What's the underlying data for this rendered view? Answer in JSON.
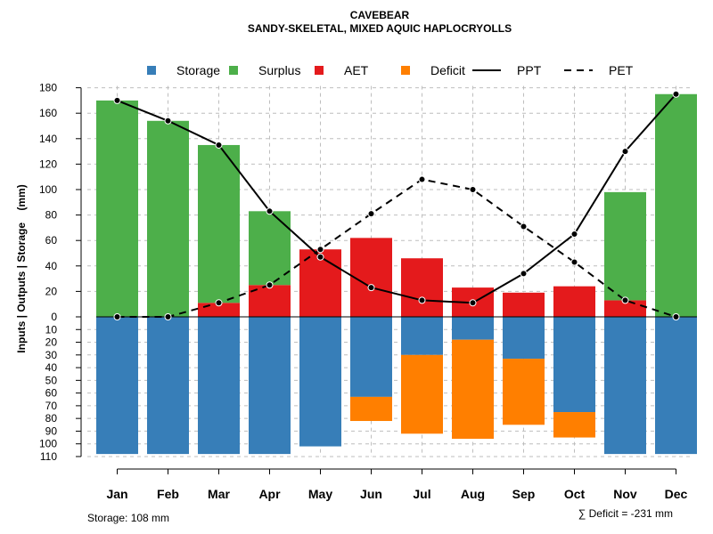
{
  "chart_data": {
    "type": "bar",
    "title": "CAVEBEAR",
    "subtitle": "SANDY-SKELETAL, MIXED AQUIC HAPLOCRYOLLS",
    "ylabel": "Inputs | Outputs | Storage    (mm)",
    "ylim": [
      -110,
      180
    ],
    "yticks_positive": [
      0,
      20,
      40,
      60,
      80,
      100,
      120,
      140,
      160,
      180
    ],
    "yticks_negative": [
      10,
      20,
      30,
      40,
      50,
      60,
      70,
      80,
      90,
      100,
      110
    ],
    "grid": true,
    "categories": [
      "Jan",
      "Feb",
      "Mar",
      "Apr",
      "May",
      "Jun",
      "Jul",
      "Aug",
      "Sep",
      "Oct",
      "Nov",
      "Dec"
    ],
    "legend": {
      "placement": "top",
      "entries": [
        {
          "label": "Storage",
          "kind": "box",
          "color": "#377EB8"
        },
        {
          "label": "Surplus",
          "kind": "box",
          "color": "#4DAF4A"
        },
        {
          "label": "AET",
          "kind": "box",
          "color": "#E41A1C"
        },
        {
          "label": "Deficit",
          "kind": "box",
          "color": "#FF7F00"
        },
        {
          "label": "PPT",
          "kind": "solid"
        },
        {
          "label": "PET",
          "kind": "dashed"
        }
      ]
    },
    "series": {
      "Storage": [
        108,
        108,
        108,
        108,
        102,
        63,
        30,
        18,
        33,
        75,
        108,
        108
      ],
      "Surplus": [
        170,
        154,
        124,
        58,
        0,
        0,
        0,
        0,
        0,
        0,
        85,
        175
      ],
      "AET": [
        0,
        0,
        11,
        25,
        53,
        62,
        46,
        23,
        19,
        24,
        13,
        0
      ],
      "Deficit": [
        0,
        0,
        0,
        0,
        0,
        19,
        62,
        78,
        52,
        20,
        0,
        0
      ],
      "PPT": [
        170,
        154,
        135,
        83,
        47,
        23,
        13,
        11,
        34,
        65,
        130,
        175
      ],
      "PET": [
        0,
        0,
        11,
        25,
        53,
        81,
        108,
        100,
        71,
        43,
        13,
        0
      ]
    },
    "colors": {
      "Storage": "#377EB8",
      "Surplus": "#4DAF4A",
      "AET": "#E41A1C",
      "Deficit": "#FF7F00",
      "line": "#000000",
      "grid": "#BEBEBE"
    },
    "footnote_left": "Storage: 108 mm",
    "footnote_right": "∑ Deficit = -231 mm"
  }
}
